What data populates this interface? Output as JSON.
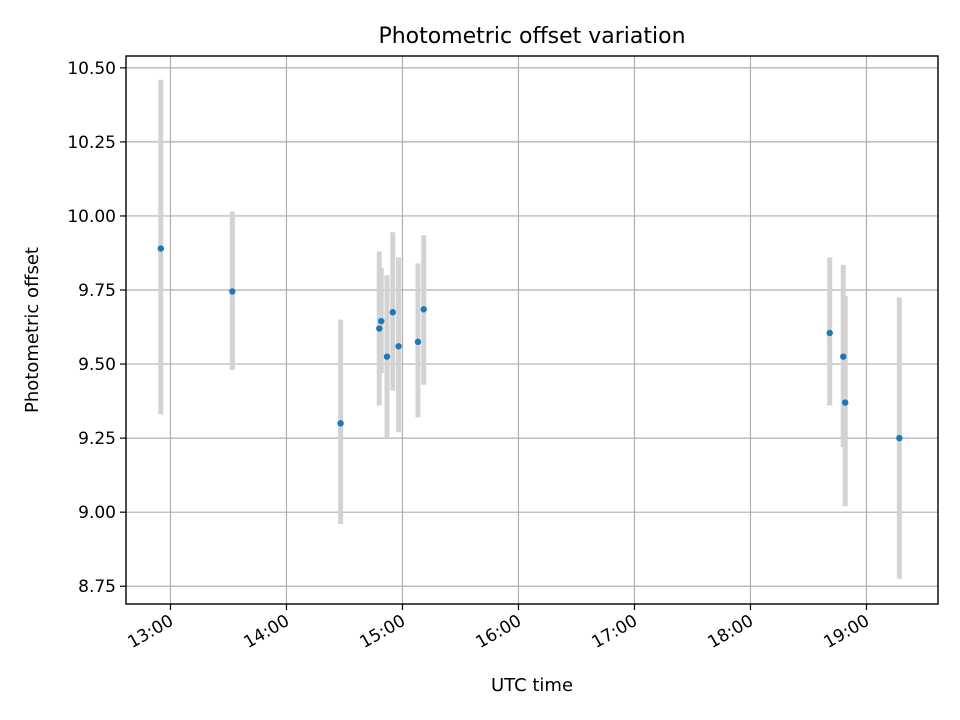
{
  "chart_data": {
    "type": "scatter",
    "title": "Photometric offset variation",
    "xlabel": "UTC time",
    "ylabel": "Photometric offset",
    "x_ticks": [
      "13:00",
      "14:00",
      "15:00",
      "16:00",
      "17:00",
      "18:00",
      "19:00"
    ],
    "y_ticks": [
      "8.75",
      "9.00",
      "9.25",
      "9.50",
      "9.75",
      "10.00",
      "10.25",
      "10.50"
    ],
    "xlim": [
      "12:37",
      "19:37"
    ],
    "ylim": [
      8.69,
      10.54
    ],
    "grid": true,
    "colors": {
      "point": "#1f77b4",
      "errorbar": "#d3d3d3"
    },
    "points": [
      {
        "x": "12:55",
        "y": 9.89,
        "yerr_low": 9.33,
        "yerr_high": 10.46
      },
      {
        "x": "13:32",
        "y": 9.745,
        "yerr_low": 9.48,
        "yerr_high": 10.015
      },
      {
        "x": "14:28",
        "y": 9.3,
        "yerr_low": 8.96,
        "yerr_high": 9.65
      },
      {
        "x": "14:48",
        "y": 9.62,
        "yerr_low": 9.36,
        "yerr_high": 9.88
      },
      {
        "x": "14:49",
        "y": 9.645,
        "yerr_low": 9.47,
        "yerr_high": 9.825
      },
      {
        "x": "14:52",
        "y": 9.525,
        "yerr_low": 9.25,
        "yerr_high": 9.8
      },
      {
        "x": "14:55",
        "y": 9.675,
        "yerr_low": 9.41,
        "yerr_high": 9.945
      },
      {
        "x": "14:58",
        "y": 9.56,
        "yerr_low": 9.27,
        "yerr_high": 9.86
      },
      {
        "x": "15:08",
        "y": 9.575,
        "yerr_low": 9.32,
        "yerr_high": 9.84
      },
      {
        "x": "15:11",
        "y": 9.685,
        "yerr_low": 9.43,
        "yerr_high": 9.935
      },
      {
        "x": "18:41",
        "y": 9.605,
        "yerr_low": 9.36,
        "yerr_high": 9.86
      },
      {
        "x": "18:48",
        "y": 9.525,
        "yerr_low": 9.22,
        "yerr_high": 9.835
      },
      {
        "x": "18:49",
        "y": 9.37,
        "yerr_low": 9.02,
        "yerr_high": 9.73
      },
      {
        "x": "19:17",
        "y": 9.25,
        "yerr_low": 8.775,
        "yerr_high": 9.725
      }
    ]
  }
}
